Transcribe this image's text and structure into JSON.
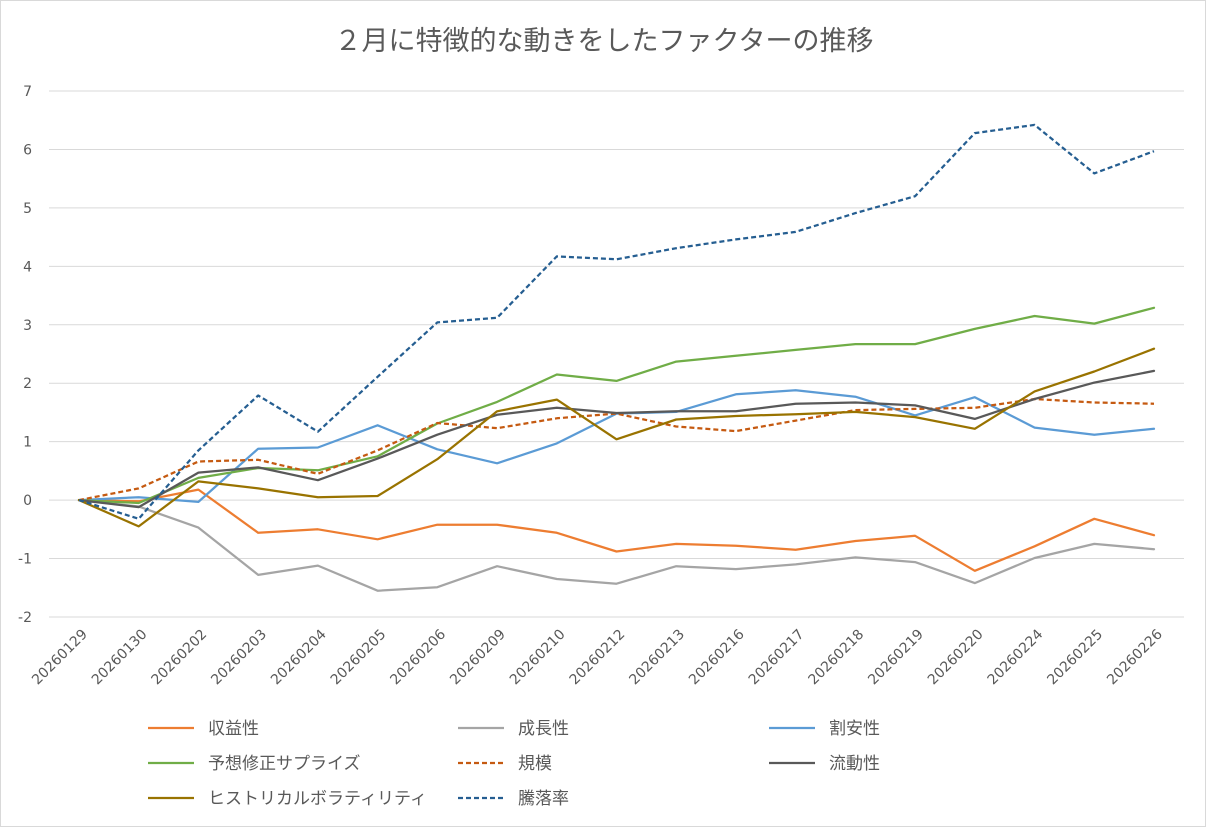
{
  "chart_data": {
    "type": "line",
    "title": "２月に特徴的な動きをしたファクターの推移",
    "xlabel": "",
    "ylabel": "",
    "ylim": [
      -2,
      7
    ],
    "yticks": [
      -2,
      -1,
      0,
      1,
      2,
      3,
      4,
      5,
      6,
      7
    ],
    "grid": true,
    "legend_position": "bottom",
    "categories": [
      "20260129",
      "20260130",
      "20260202",
      "20260203",
      "20260204",
      "20260205",
      "20260206",
      "20260209",
      "20260210",
      "20260212",
      "20260213",
      "20260216",
      "20260217",
      "20260218",
      "20260219",
      "20260220",
      "20260224",
      "20260225",
      "20260226"
    ],
    "series": [
      {
        "name": "収益性",
        "color": "#ED7D31",
        "dash": false,
        "values": [
          0,
          -0.02,
          0.18,
          -0.56,
          -0.5,
          -0.67,
          -0.42,
          -0.42,
          -0.56,
          -0.88,
          -0.75,
          -0.78,
          -0.85,
          -0.7,
          -0.61,
          -1.21,
          -0.79,
          -0.32,
          -0.6
        ]
      },
      {
        "name": "成長性",
        "color": "#A5A5A5",
        "dash": false,
        "values": [
          0,
          -0.11,
          -0.47,
          -1.28,
          -1.12,
          -1.55,
          -1.49,
          -1.13,
          -1.35,
          -1.43,
          -1.13,
          -1.18,
          -1.1,
          -0.98,
          -1.06,
          -1.42,
          -0.99,
          -0.75,
          -0.84
        ]
      },
      {
        "name": "割安性",
        "color": "#5B9BD5",
        "dash": false,
        "values": [
          0,
          0.05,
          -0.03,
          0.88,
          0.9,
          1.28,
          0.87,
          0.63,
          0.97,
          1.48,
          1.51,
          1.81,
          1.88,
          1.77,
          1.45,
          1.76,
          1.24,
          1.12,
          1.22
        ]
      },
      {
        "name": "予想修正サプライズ",
        "color": "#70AD47",
        "dash": false,
        "values": [
          0,
          -0.05,
          0.38,
          0.55,
          0.51,
          0.75,
          1.31,
          1.68,
          2.15,
          2.04,
          2.37,
          2.47,
          2.57,
          2.67,
          2.67,
          2.93,
          3.15,
          3.02,
          3.29
        ]
      },
      {
        "name": "規模",
        "color": "#C55A11",
        "dash": true,
        "values": [
          0,
          0.2,
          0.66,
          0.69,
          0.45,
          0.85,
          1.32,
          1.23,
          1.4,
          1.48,
          1.26,
          1.18,
          1.36,
          1.54,
          1.56,
          1.58,
          1.73,
          1.67,
          1.65
        ]
      },
      {
        "name": "流動性",
        "color": "#595959",
        "dash": false,
        "values": [
          0,
          -0.12,
          0.47,
          0.56,
          0.34,
          0.71,
          1.12,
          1.46,
          1.58,
          1.49,
          1.52,
          1.52,
          1.65,
          1.67,
          1.62,
          1.39,
          1.73,
          2.01,
          2.21
        ]
      },
      {
        "name": "ヒストリカルボラティリティ",
        "color": "#997300",
        "dash": false,
        "values": [
          0,
          -0.45,
          0.32,
          0.2,
          0.05,
          0.07,
          0.7,
          1.52,
          1.72,
          1.04,
          1.38,
          1.44,
          1.47,
          1.51,
          1.42,
          1.22,
          1.86,
          2.2,
          2.59
        ]
      },
      {
        "name": "騰落率",
        "color": "#255E91",
        "dash": true,
        "values": [
          0,
          -0.32,
          0.85,
          1.79,
          1.17,
          2.11,
          3.04,
          3.12,
          4.17,
          4.12,
          4.31,
          4.46,
          4.59,
          4.91,
          5.2,
          6.28,
          6.42,
          5.59,
          5.97
        ]
      }
    ]
  }
}
